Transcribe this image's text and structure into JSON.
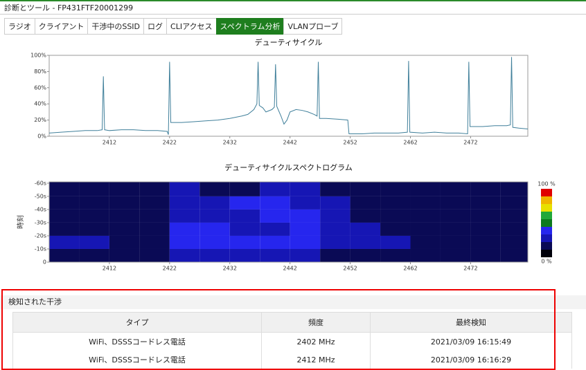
{
  "header": {
    "title": "診断とツール - FP431FTF20001299"
  },
  "tabs": [
    "ラジオ",
    "クライアント",
    "干渉中のSSID",
    "ログ",
    "CLIアクセス",
    "スペクトラム分析",
    "VLANプローブ"
  ],
  "active_tab": 5,
  "chart_data": [
    {
      "type": "line",
      "title": "デューティサイクル",
      "color": "#3f7f9a",
      "x": [
        2402,
        2404,
        2406,
        2408,
        2410,
        2410.8,
        2411,
        2411.2,
        2412,
        2414,
        2416,
        2418,
        2420,
        2421.6,
        2421.8,
        2422,
        2422.2,
        2424,
        2426,
        2428,
        2430,
        2432,
        2434,
        2435,
        2436,
        2436.5,
        2436.7,
        2436.9,
        2437.5,
        2438,
        2439,
        2439.4,
        2439.6,
        2439.8,
        2440.5,
        2441,
        2441.5,
        2442,
        2443,
        2444,
        2445,
        2446,
        2446.5,
        2446.7,
        2446.9,
        2448,
        2450,
        2451.6,
        2451.8,
        2454,
        2456,
        2458,
        2460,
        2461.5,
        2461.7,
        2461.9,
        2464,
        2466,
        2468,
        2470,
        2471.5,
        2471.7,
        2471.9,
        2474,
        2476,
        2478,
        2478.6,
        2478.8,
        2479,
        2480,
        2481.5
      ],
      "series": [
        {
          "values": [
            4,
            5,
            6,
            7,
            7,
            8,
            74,
            8,
            7,
            8,
            8,
            7,
            7,
            6,
            2,
            92,
            17,
            17,
            18,
            19,
            20,
            22,
            25,
            27,
            33,
            40,
            92,
            38,
            35,
            30,
            33,
            36,
            89,
            37,
            25,
            15,
            20,
            30,
            33,
            32,
            30,
            27,
            25,
            92,
            22,
            22,
            21,
            20,
            3,
            3,
            4,
            4,
            4,
            5,
            93,
            5,
            4,
            5,
            4,
            4,
            3,
            92,
            12,
            12,
            13,
            13,
            14,
            98,
            11,
            10,
            9
          ]
        }
      ],
      "xlim": [
        2402,
        2481.5
      ],
      "xticks": [
        2412,
        2422,
        2432,
        2442,
        2452,
        2462,
        2472
      ],
      "ylim": [
        0,
        100
      ],
      "yticks": [
        {
          "value": 0,
          "label": "0%"
        },
        {
          "value": 20,
          "label": "20%"
        },
        {
          "value": 40,
          "label": "40%"
        },
        {
          "value": 60,
          "label": "60%"
        },
        {
          "value": 80,
          "label": "80%"
        },
        {
          "value": 100,
          "label": "100%"
        }
      ]
    },
    {
      "type": "heatmap",
      "title": "デューティサイクルスペクトログラム",
      "y_label": "時刻",
      "xbins": [
        2402,
        2407,
        2412,
        2417,
        2422,
        2427,
        2432,
        2437,
        2442,
        2447,
        2452,
        2457,
        2462,
        2467,
        2472,
        2477,
        2481.5
      ],
      "ybins": [
        -61,
        -50,
        -40,
        -30,
        -20,
        -10,
        0
      ],
      "values": [
        [
          12,
          12,
          12,
          12,
          25,
          20,
          20,
          28,
          30,
          22,
          12,
          12,
          12,
          12,
          12,
          12
        ],
        [
          12,
          12,
          12,
          12,
          30,
          30,
          35,
          35,
          30,
          25,
          12,
          12,
          12,
          12,
          12,
          12
        ],
        [
          12,
          12,
          12,
          12,
          25,
          30,
          30,
          35,
          35,
          25,
          12,
          12,
          12,
          12,
          12,
          12
        ],
        [
          12,
          12,
          12,
          12,
          35,
          35,
          30,
          30,
          35,
          30,
          25,
          12,
          12,
          12,
          12,
          12
        ],
        [
          25,
          25,
          12,
          12,
          35,
          35,
          35,
          35,
          35,
          25,
          25,
          25,
          12,
          12,
          12,
          12
        ],
        [
          12,
          12,
          12,
          12,
          25,
          25,
          30,
          30,
          25,
          22,
          12,
          12,
          12,
          12,
          12,
          12
        ]
      ],
      "xlim": [
        2402,
        2481.5
      ],
      "xticks": [
        2412,
        2422,
        2432,
        2442,
        2452,
        2462,
        2472
      ],
      "ylim": [
        0,
        -61
      ],
      "yticks": [
        {
          "value": -60,
          "label": "-60s"
        },
        {
          "value": -50,
          "label": "-50s"
        },
        {
          "value": -40,
          "label": "-40s"
        },
        {
          "value": -30,
          "label": "-30s"
        },
        {
          "value": -20,
          "label": "-20s"
        },
        {
          "value": -10,
          "label": "-10s"
        },
        0
      ],
      "colorscale": [
        "#00000a",
        "#0a0a55",
        "#1616b4",
        "#2626ee",
        "#0c7a1e",
        "#22a83a",
        "#e8e000",
        "#f0b400",
        "#e00000"
      ],
      "colorbar_labels": [
        "100 %",
        "0 %"
      ]
    }
  ],
  "interference": {
    "title": "検知された干渉",
    "columns": [
      "タイプ",
      "頻度",
      "最終検知"
    ],
    "rows": [
      [
        "WiFi、DSSSコードレス電話",
        "2402 MHz",
        "2021/03/09 16:15:49"
      ],
      [
        "WiFi、DSSSコードレス電話",
        "2412 MHz",
        "2021/03/09 16:16:29"
      ]
    ]
  }
}
